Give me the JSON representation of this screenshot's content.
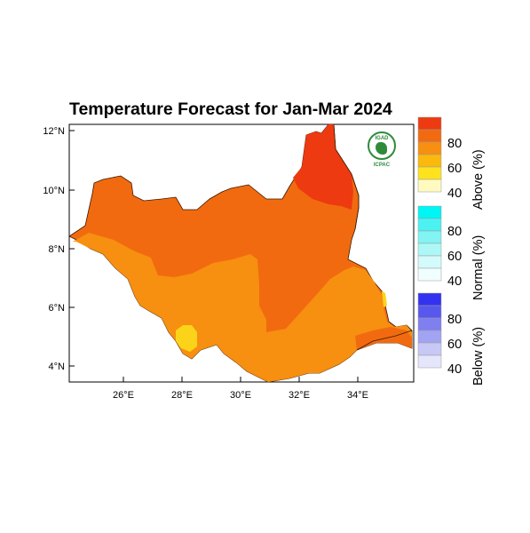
{
  "title": "Temperature Forecast for Jan-Mar 2024",
  "logo": {
    "top_text": "IGAD",
    "bottom_text": "ICPAC"
  },
  "axes": {
    "y_ticks": [
      "12°N",
      "10°N",
      "8°N",
      "6°N",
      "4°N"
    ],
    "x_ticks": [
      "26°E",
      "28°E",
      "30°E",
      "32°E",
      "34°E"
    ]
  },
  "colorbar": {
    "above": {
      "label": "Above (%)",
      "ticks": [
        "80",
        "60",
        "40"
      ],
      "colors": [
        "#ee3a10",
        "#f26a10",
        "#f78f10",
        "#fbb90d",
        "#ffe21e",
        "#fffbc0"
      ]
    },
    "normal": {
      "label": "Normal (%)",
      "ticks": [
        "80",
        "60",
        "40"
      ],
      "colors": [
        "#00f5f5",
        "#4cf2f2",
        "#82f4f4",
        "#aef7f7",
        "#d3fbfb",
        "#f0fefe"
      ]
    },
    "below": {
      "label": "Below (%)",
      "ticks": [
        "80",
        "60",
        "40"
      ],
      "colors": [
        "#3232f0",
        "#5858ee",
        "#7f7ff0",
        "#a3a3f3",
        "#c8c8f7",
        "#e5e5fb"
      ]
    }
  },
  "regions": {
    "base_color": "#f26a10",
    "north_east_high": "#ee3a10",
    "south_west_lighter": "#f78f10",
    "small_patch": "#fbd41a"
  }
}
